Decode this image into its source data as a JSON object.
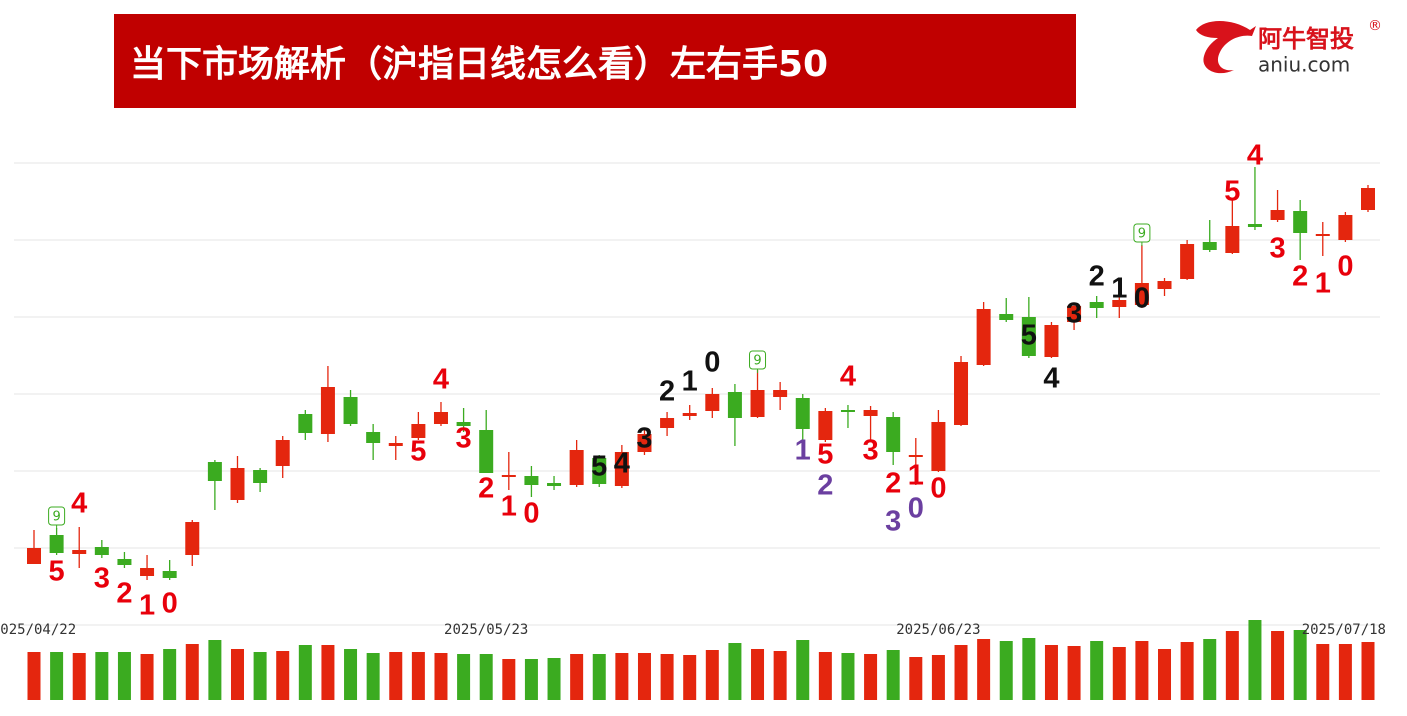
{
  "header": {
    "title": "当下市场解析（沪指日线怎么看）左右手50",
    "logo": {
      "name": "阿牛智投",
      "mark": "®",
      "site": "aniu.com"
    }
  },
  "chart_data": {
    "type": "candlestick",
    "categories": [
      "2025/04/22",
      null,
      null,
      null,
      null,
      null,
      null,
      null,
      null,
      null,
      null,
      null,
      null,
      null,
      null,
      null,
      null,
      null,
      null,
      null,
      "2025/05/23",
      null,
      null,
      null,
      null,
      null,
      null,
      null,
      null,
      null,
      null,
      null,
      null,
      null,
      null,
      null,
      null,
      null,
      null,
      null,
      "2025/06/23",
      null,
      null,
      null,
      null,
      null,
      null,
      null,
      null,
      null,
      null,
      null,
      null,
      null,
      null,
      null,
      null,
      null,
      null,
      "2025/07/18"
    ],
    "open": [
      3276,
      3305,
      3286,
      3293,
      3281,
      3264,
      3269,
      3285,
      3378,
      3340,
      3370,
      3374,
      3426,
      3406,
      3443,
      3408,
      3394,
      3402,
      3416,
      3418,
      3410,
      3363,
      3364,
      3357,
      3355,
      3382,
      3354,
      3388,
      3412,
      3424,
      3429,
      3448,
      3423,
      3443,
      3442,
      3400,
      3430,
      3424,
      3423,
      3383,
      3369,
      3415,
      3475,
      3526,
      3523,
      3483,
      3518,
      3538,
      3533,
      3535,
      3551,
      3561,
      3598,
      3587,
      3616,
      3620,
      3629,
      3604,
      3600,
      3630
    ],
    "high": [
      3310,
      3312,
      3313,
      3300,
      3288,
      3285,
      3280,
      3320,
      3380,
      3384,
      3372,
      3404,
      3430,
      3474,
      3450,
      3416,
      3404,
      3428,
      3438,
      3432,
      3430,
      3388,
      3374,
      3364,
      3400,
      3385,
      3395,
      3412,
      3428,
      3435,
      3452,
      3456,
      3470,
      3458,
      3446,
      3432,
      3435,
      3434,
      3428,
      3402,
      3430,
      3484,
      3538,
      3542,
      3543,
      3518,
      3536,
      3544,
      3560,
      3595,
      3562,
      3600,
      3620,
      3640,
      3673,
      3650,
      3640,
      3618,
      3628,
      3655
    ],
    "low": [
      3276,
      3285,
      3272,
      3282,
      3272,
      3260,
      3260,
      3274,
      3330,
      3337,
      3348,
      3362,
      3400,
      3398,
      3414,
      3380,
      3380,
      3400,
      3414,
      3408,
      3367,
      3350,
      3343,
      3350,
      3353,
      3353,
      3352,
      3385,
      3404,
      3420,
      3422,
      3394,
      3422,
      3430,
      3400,
      3398,
      3412,
      3400,
      3375,
      3355,
      3368,
      3414,
      3474,
      3518,
      3482,
      3482,
      3510,
      3522,
      3522,
      3532,
      3544,
      3560,
      3588,
      3586,
      3610,
      3618,
      3580,
      3584,
      3598,
      3628
    ],
    "close": [
      3292,
      3287,
      3290,
      3285,
      3275,
      3272,
      3262,
      3318,
      3359,
      3372,
      3357,
      3400,
      3407,
      3453,
      3416,
      3397,
      3397,
      3416,
      3428,
      3414,
      3367,
      3365,
      3355,
      3354,
      3390,
      3356,
      3388,
      3406,
      3422,
      3427,
      3446,
      3422,
      3450,
      3450,
      3411,
      3429,
      3428,
      3430,
      3388,
      3385,
      3418,
      3478,
      3531,
      3520,
      3484,
      3515,
      3534,
      3532,
      3540,
      3557,
      3559,
      3596,
      3590,
      3614,
      3613,
      3630,
      3607,
      3606,
      3625,
      3652
    ],
    "volume": [
      48,
      48,
      47,
      48,
      48,
      46,
      51,
      56,
      60,
      51,
      48,
      49,
      55,
      55,
      51,
      47,
      48,
      48,
      47,
      46,
      46,
      41,
      41,
      42,
      46,
      46,
      47,
      47,
      46,
      45,
      50,
      57,
      51,
      49,
      60,
      48,
      47,
      46,
      50,
      43,
      45,
      55,
      61,
      59,
      62,
      55,
      54,
      59,
      53,
      59,
      51,
      58,
      61,
      69,
      80,
      69,
      70,
      56,
      56,
      58
    ],
    "up_color": "#e4260e",
    "down_color": "#3bab20",
    "ylim": [
      3215,
      3677
    ],
    "volume_lim": [
      0,
      85
    ],
    "grid": true,
    "annotations": [
      {
        "text": "9",
        "at": 1,
        "y": 3324,
        "color": "#3bab20",
        "kind": "badge"
      },
      {
        "text": "5",
        "at": 1,
        "y": 3267,
        "color": "#e8000b"
      },
      {
        "text": "4",
        "at": 2,
        "y": 3335,
        "color": "#e8000b"
      },
      {
        "text": "3",
        "at": 3,
        "y": 3260,
        "color": "#e8000b"
      },
      {
        "text": "2",
        "at": 4,
        "y": 3245,
        "color": "#e8000b"
      },
      {
        "text": "1",
        "at": 5,
        "y": 3233,
        "color": "#e8000b"
      },
      {
        "text": "0",
        "at": 6,
        "y": 3235,
        "color": "#e8000b"
      },
      {
        "text": "5",
        "at": 17,
        "y": 3387,
        "color": "#e8000b"
      },
      {
        "text": "4",
        "at": 18,
        "y": 3459,
        "color": "#e8000b"
      },
      {
        "text": "3",
        "at": 19,
        "y": 3400,
        "color": "#e8000b"
      },
      {
        "text": "2",
        "at": 20,
        "y": 3350,
        "color": "#e8000b"
      },
      {
        "text": "1",
        "at": 21,
        "y": 3332,
        "color": "#e8000b"
      },
      {
        "text": "0",
        "at": 22,
        "y": 3325,
        "color": "#e8000b"
      },
      {
        "text": "5",
        "at": 25,
        "y": 3372,
        "color": "#111111"
      },
      {
        "text": "4",
        "at": 26,
        "y": 3375,
        "color": "#111111"
      },
      {
        "text": "3",
        "at": 27,
        "y": 3400,
        "color": "#111111"
      },
      {
        "text": "2",
        "at": 28,
        "y": 3447,
        "color": "#111111"
      },
      {
        "text": "1",
        "at": 29,
        "y": 3457,
        "color": "#111111"
      },
      {
        "text": "0",
        "at": 30,
        "y": 3476,
        "color": "#111111"
      },
      {
        "text": "9",
        "at": 32,
        "y": 3480,
        "color": "#3bab20",
        "kind": "badge"
      },
      {
        "text": "1",
        "at": 34,
        "y": 3388,
        "color": "#6b3fa0"
      },
      {
        "text": "5",
        "at": 35,
        "y": 3384,
        "color": "#e8000b"
      },
      {
        "text": "2",
        "at": 35,
        "y": 3353,
        "color": "#6b3fa0"
      },
      {
        "text": "4",
        "at": 36,
        "y": 3462,
        "color": "#e8000b"
      },
      {
        "text": "3",
        "at": 37,
        "y": 3388,
        "color": "#e8000b"
      },
      {
        "text": "2",
        "at": 38,
        "y": 3355,
        "color": "#e8000b"
      },
      {
        "text": "3",
        "at": 38,
        "y": 3317,
        "color": "#6b3fa0"
      },
      {
        "text": "1",
        "at": 39,
        "y": 3363,
        "color": "#e8000b"
      },
      {
        "text": "0",
        "at": 39,
        "y": 3330,
        "color": "#6b3fa0"
      },
      {
        "text": "0",
        "at": 40,
        "y": 3350,
        "color": "#e8000b"
      },
      {
        "text": "5",
        "at": 44,
        "y": 3503,
        "color": "#111111"
      },
      {
        "text": "4",
        "at": 45,
        "y": 3460,
        "color": "#111111"
      },
      {
        "text": "3",
        "at": 46,
        "y": 3525,
        "color": "#111111"
      },
      {
        "text": "2",
        "at": 47,
        "y": 3562,
        "color": "#111111"
      },
      {
        "text": "1",
        "at": 48,
        "y": 3550,
        "color": "#111111"
      },
      {
        "text": "0",
        "at": 49,
        "y": 3540,
        "color": "#111111"
      },
      {
        "text": "9",
        "at": 49,
        "y": 3607,
        "color": "#3bab20",
        "kind": "badge"
      },
      {
        "text": "5",
        "at": 53,
        "y": 3647,
        "color": "#e8000b"
      },
      {
        "text": "4",
        "at": 54,
        "y": 3683,
        "color": "#e8000b"
      },
      {
        "text": "3",
        "at": 55,
        "y": 3590,
        "color": "#e8000b"
      },
      {
        "text": "2",
        "at": 56,
        "y": 3562,
        "color": "#e8000b"
      },
      {
        "text": "1",
        "at": 57,
        "y": 3555,
        "color": "#e8000b"
      },
      {
        "text": "0",
        "at": 58,
        "y": 3572,
        "color": "#e8000b"
      }
    ]
  }
}
